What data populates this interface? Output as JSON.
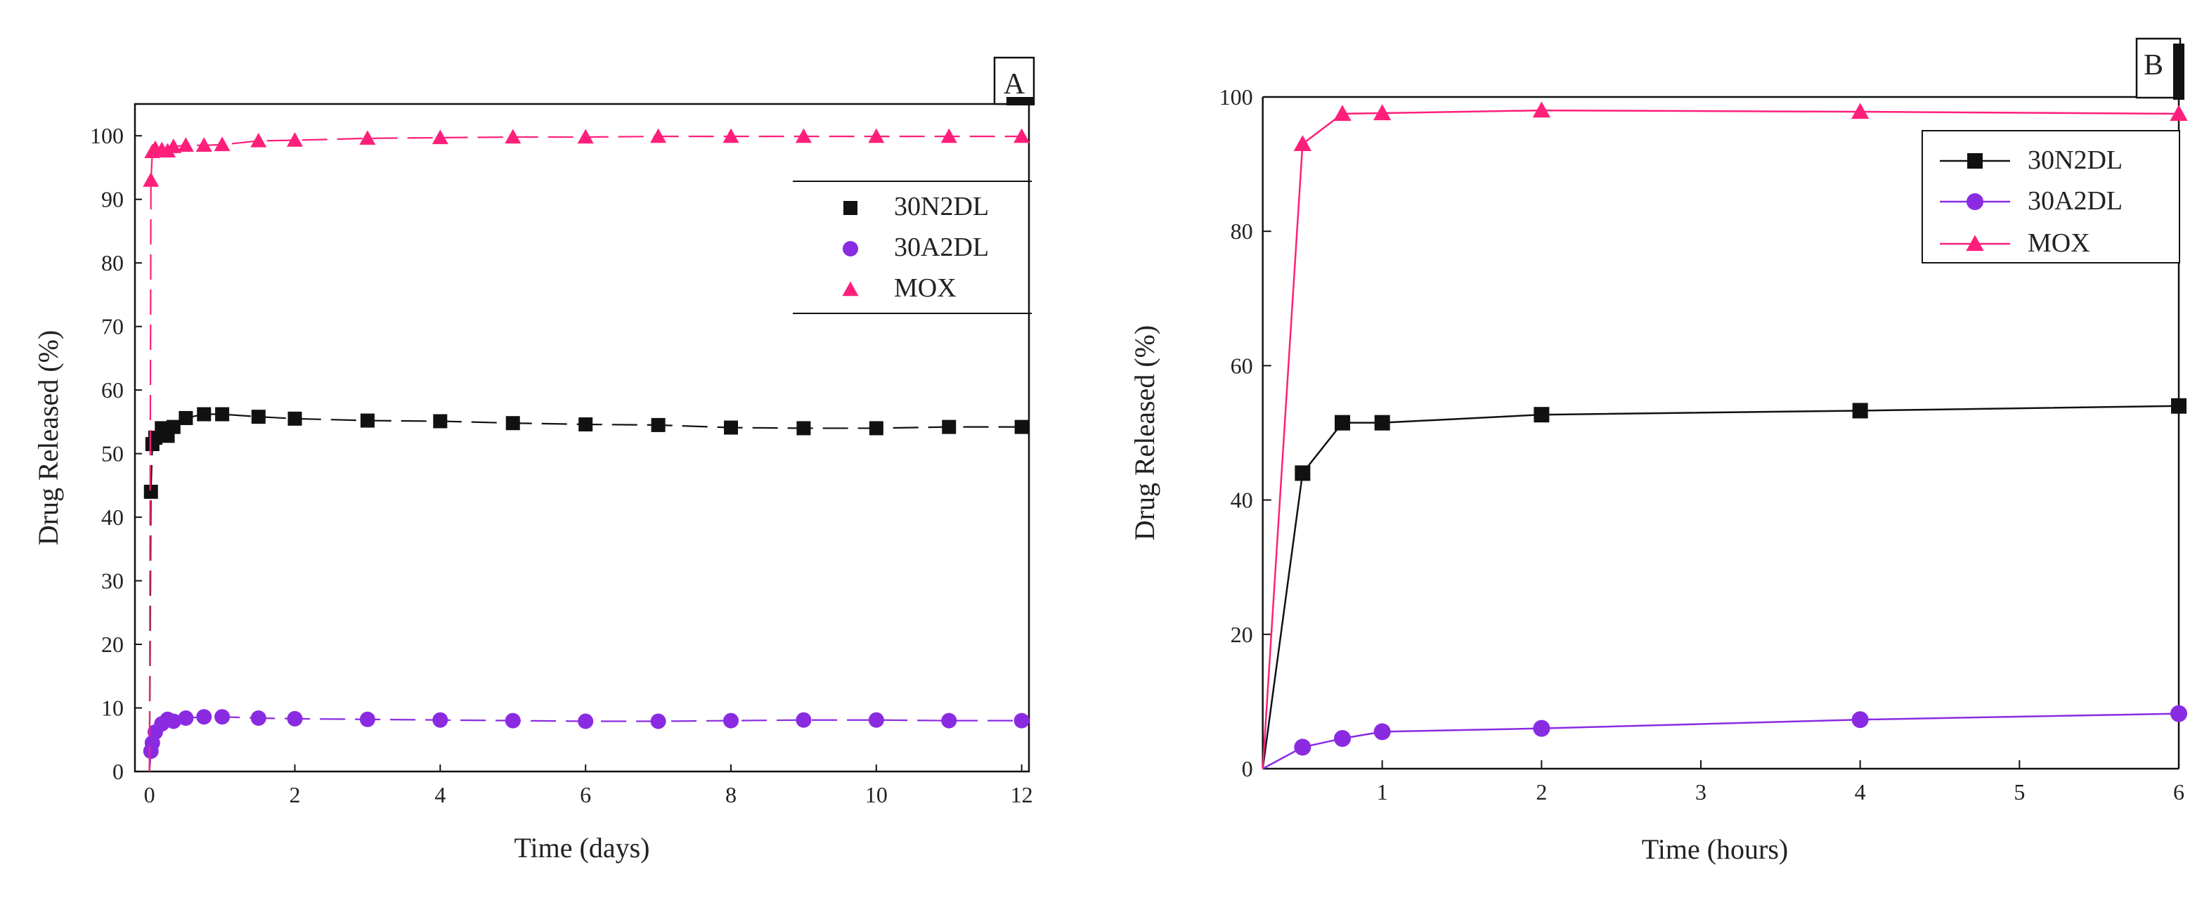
{
  "chart_data": [
    {
      "type": "scatter",
      "panel_label": "A",
      "xlabel": "Time (days)",
      "ylabel": "Drug Released (%)",
      "xlim": [
        -0.2,
        12.1
      ],
      "ylim": [
        0,
        105
      ],
      "xticks": [
        0,
        2,
        4,
        6,
        8,
        10,
        12
      ],
      "yticks": [
        0,
        10,
        20,
        30,
        40,
        50,
        60,
        70,
        80,
        90,
        100
      ],
      "legend_position": "top-right",
      "series": [
        {
          "name": "30N2DL",
          "color": "#111111",
          "marker": "square",
          "x": [
            0,
            0.02,
            0.04,
            0.08,
            0.17,
            0.25,
            0.33,
            0.5,
            0.75,
            1,
            1.5,
            2,
            3,
            4,
            5,
            6,
            7,
            8,
            9,
            10,
            11,
            12
          ],
          "y": [
            0,
            44,
            51.5,
            52.5,
            54,
            52.8,
            54.2,
            55.6,
            56.2,
            56.2,
            55.8,
            55.5,
            55.2,
            55.1,
            54.8,
            54.6,
            54.5,
            54.1,
            54,
            54,
            54.2,
            54.2
          ]
        },
        {
          "name": "30A2DL",
          "color": "#8a2be2",
          "marker": "circle",
          "x": [
            0,
            0.02,
            0.04,
            0.08,
            0.17,
            0.25,
            0.33,
            0.5,
            0.75,
            1,
            1.5,
            2,
            3,
            4,
            5,
            6,
            7,
            8,
            9,
            10,
            11,
            12
          ],
          "y": [
            0,
            3.2,
            4.5,
            6.2,
            7.5,
            8.2,
            7.9,
            8.4,
            8.6,
            8.6,
            8.4,
            8.3,
            8.2,
            8.1,
            8,
            7.9,
            7.9,
            8,
            8.1,
            8.1,
            8,
            8
          ]
        },
        {
          "name": "MOX",
          "color": "#ff1f7a",
          "marker": "triangle",
          "x": [
            0,
            0.02,
            0.04,
            0.08,
            0.17,
            0.25,
            0.33,
            0.5,
            0.75,
            1,
            1.5,
            2,
            3,
            4,
            5,
            6,
            7,
            8,
            9,
            10,
            11,
            12
          ],
          "y": [
            0,
            93,
            97.5,
            98,
            97.8,
            97.6,
            98.3,
            98.5,
            98.5,
            98.6,
            99.2,
            99.3,
            99.6,
            99.7,
            99.8,
            99.8,
            99.9,
            99.9,
            99.9,
            99.9,
            99.9,
            99.9
          ]
        }
      ]
    },
    {
      "type": "line",
      "panel_label": "B",
      "xlabel": "Time (hours)",
      "ylabel": "Drug Released (%)",
      "xlim": [
        0,
        6
      ],
      "ylim": [
        0,
        100
      ],
      "x_start": 0.25,
      "xticks": [
        1,
        2,
        3,
        4,
        5,
        6
      ],
      "yticks": [
        0,
        20,
        40,
        60,
        80,
        100
      ],
      "legend_position": "top-right",
      "series": [
        {
          "name": "30N2DL",
          "color": "#111111",
          "marker": "square",
          "x": [
            0.25,
            0.5,
            0.75,
            1,
            2,
            4,
            6
          ],
          "y": [
            0,
            44,
            51.5,
            51.5,
            52.7,
            53.3,
            54
          ]
        },
        {
          "name": "30A2DL",
          "color": "#8a2be2",
          "marker": "circle",
          "x": [
            0.25,
            0.5,
            0.75,
            1,
            2,
            4,
            6
          ],
          "y": [
            0,
            3.2,
            4.5,
            5.5,
            6,
            7.3,
            8.2
          ]
        },
        {
          "name": "MOX",
          "color": "#ff1f7a",
          "marker": "triangle",
          "x": [
            0.25,
            0.5,
            0.75,
            1,
            2,
            4,
            6
          ],
          "y": [
            0,
            93,
            97.5,
            97.6,
            98,
            97.8,
            97.5
          ]
        }
      ]
    }
  ]
}
